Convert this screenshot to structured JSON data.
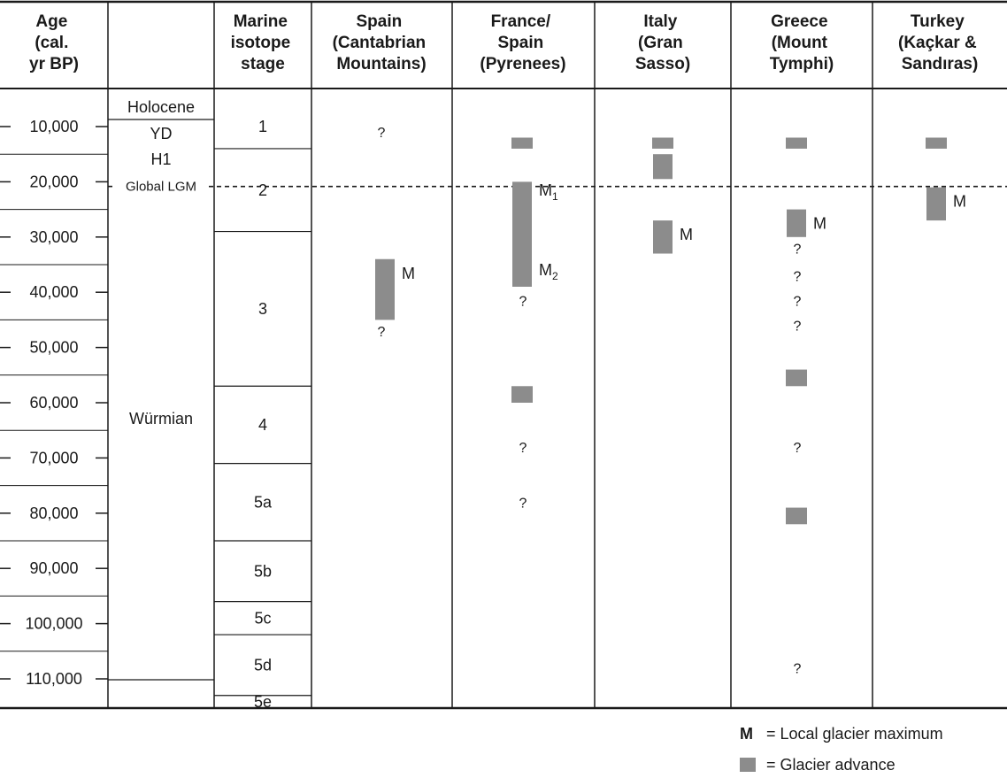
{
  "colors": {
    "bar": "#8c8c8c",
    "line": "#1a1a1a",
    "background": "#ffffff"
  },
  "headers": {
    "age": [
      "Age",
      "(cal.",
      "yr BP)"
    ],
    "stage": [
      "Marine",
      "isotope",
      "stage"
    ],
    "regions": [
      [
        "Spain",
        "(Cantabrian",
        "Mountains)"
      ],
      [
        "France/",
        "Spain",
        "(Pyrenees)"
      ],
      [
        "Italy",
        "(Gran",
        "Sasso)"
      ],
      [
        "Greece",
        "(Mount",
        "Tymphi)"
      ],
      [
        "Turkey",
        "(Kaçkar &",
        "Sandıras)"
      ]
    ]
  },
  "age_ticks": [
    "10,000",
    "20,000",
    "30,000",
    "40,000",
    "50,000",
    "60,000",
    "70,000",
    "80,000",
    "90,000",
    "100,000",
    "110,000"
  ],
  "periods": {
    "holocene": "Holocene",
    "yd": "YD",
    "h1": "H1",
    "lgm": "Global LGM",
    "wurmian": "Würmian"
  },
  "stages": [
    {
      "label": "1",
      "from": 6000,
      "to": 14000
    },
    {
      "label": "2",
      "from": 14000,
      "to": 29000
    },
    {
      "label": "3",
      "from": 29000,
      "to": 57000
    },
    {
      "label": "4",
      "from": 57000,
      "to": 71000
    },
    {
      "label": "5a",
      "from": 71000,
      "to": 85000
    },
    {
      "label": "5b",
      "from": 85000,
      "to": 96000
    },
    {
      "label": "5c",
      "from": 96000,
      "to": 102000
    },
    {
      "label": "5d",
      "from": 102000,
      "to": 113000
    },
    {
      "label": "5e",
      "from": 113000,
      "to": 118000
    }
  ],
  "lgm_age": 21000,
  "regions": [
    {
      "key": "spain",
      "bars": [
        {
          "from": 34000,
          "to": 45000,
          "mark": "M"
        }
      ],
      "queries": [
        11000,
        47000
      ]
    },
    {
      "key": "pyrenees",
      "bars": [
        {
          "from": 12000,
          "to": 14000
        },
        {
          "from": 20000,
          "to": 39000
        },
        {
          "from": 57000,
          "to": 60000
        }
      ],
      "marks": [
        {
          "base": "M",
          "sub": "1",
          "age": 21500
        },
        {
          "base": "M",
          "sub": "2",
          "age": 36000
        }
      ],
      "queries": [
        41500,
        68000,
        78000
      ]
    },
    {
      "key": "italy",
      "bars": [
        {
          "from": 12000,
          "to": 14000
        },
        {
          "from": 15000,
          "to": 19500
        },
        {
          "from": 27000,
          "to": 33000,
          "mark": "M"
        }
      ],
      "queries": []
    },
    {
      "key": "greece",
      "bars": [
        {
          "from": 12000,
          "to": 14000
        },
        {
          "from": 25000,
          "to": 30000,
          "mark": "M"
        },
        {
          "from": 54000,
          "to": 57000
        },
        {
          "from": 79000,
          "to": 82000
        }
      ],
      "queries": [
        32000,
        37000,
        41500,
        46000,
        68000,
        108000
      ]
    },
    {
      "key": "turkey",
      "bars": [
        {
          "from": 12000,
          "to": 14000
        },
        {
          "from": 21000,
          "to": 27000,
          "mark": "M"
        }
      ],
      "queries": []
    }
  ],
  "legend": {
    "mark_symbol": "M",
    "mark_text": "=  Local glacier maximum",
    "bar_text": "=  Glacier advance"
  }
}
